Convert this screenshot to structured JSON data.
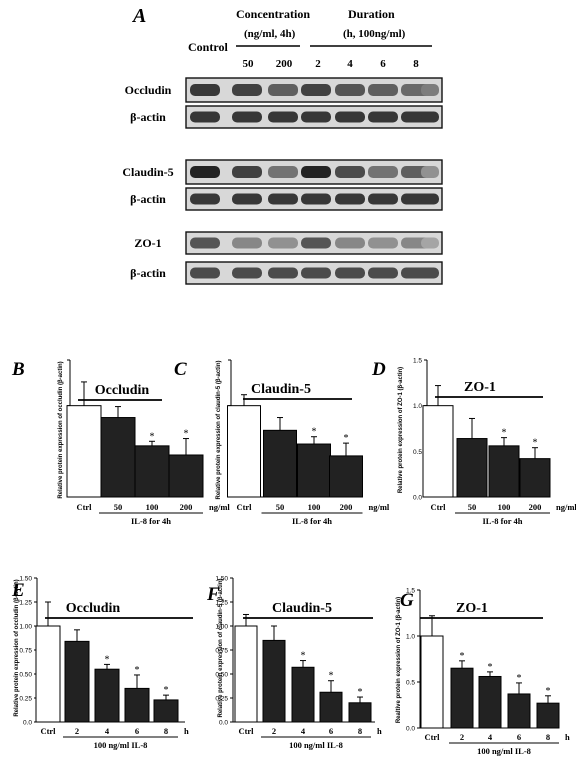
{
  "panel_a": {
    "letter": "A",
    "control_label": "Control",
    "concentration_header": [
      "Concentration",
      "(ng/ml, 4h)"
    ],
    "duration_header": [
      "Duration",
      "(h, 100ng/ml)"
    ],
    "lane_labels": [
      "50",
      "200",
      "2",
      "4",
      "6",
      "8"
    ],
    "blots": [
      {
        "label": "Occludin",
        "intensities": [
          0.85,
          0.8,
          0.65,
          0.8,
          0.7,
          0.65,
          0.6,
          0.5
        ]
      },
      {
        "label": "β-actin",
        "intensities": [
          0.85,
          0.85,
          0.85,
          0.85,
          0.85,
          0.85,
          0.85,
          0.85
        ]
      },
      {
        "label": "Claudin-5",
        "intensities": [
          0.95,
          0.8,
          0.55,
          0.95,
          0.75,
          0.55,
          0.65,
          0.4
        ]
      },
      {
        "label": "β-actin",
        "intensities": [
          0.85,
          0.85,
          0.85,
          0.85,
          0.85,
          0.85,
          0.85,
          0.85
        ]
      },
      {
        "label": "ZO-1",
        "intensities": [
          0.7,
          0.45,
          0.4,
          0.7,
          0.45,
          0.4,
          0.45,
          0.3
        ]
      },
      {
        "label": "β-actin",
        "intensities": [
          0.75,
          0.75,
          0.75,
          0.75,
          0.75,
          0.75,
          0.75,
          0.75
        ]
      }
    ]
  },
  "chart_data": [
    {
      "panel": "B",
      "type": "bar",
      "title": "Occludin",
      "ylabel": "Relative protein expression of occludin (β-actin)",
      "categories": [
        "Ctrl",
        "50",
        "100",
        "200"
      ],
      "values": [
        1.0,
        0.87,
        0.56,
        0.46
      ],
      "errors": [
        0.26,
        0.12,
        0.05,
        0.18
      ],
      "significant": [
        false,
        false,
        true,
        true
      ],
      "unit": "ng/ml",
      "group_label": "IL-8 for 4h",
      "ylim": [
        0,
        1.5
      ],
      "yticks": []
    },
    {
      "panel": "C",
      "type": "bar",
      "title": "Claudin-5",
      "ylabel": "Relative protein expression of claudin-5 (β-actin)",
      "categories": [
        "Ctrl",
        "50",
        "100",
        "200"
      ],
      "values": [
        1.0,
        0.73,
        0.58,
        0.45
      ],
      "errors": [
        0.12,
        0.14,
        0.08,
        0.14
      ],
      "significant": [
        false,
        false,
        true,
        true
      ],
      "unit": "ng/ml",
      "group_label": "IL-8 for 4h",
      "ylim": [
        0,
        1.5
      ],
      "yticks": []
    },
    {
      "panel": "D",
      "type": "bar",
      "title": "ZO-1",
      "ylabel": "Relative protein expression of ZO-1 (β-actin)",
      "categories": [
        "Ctrl",
        "50",
        "100",
        "200"
      ],
      "values": [
        1.0,
        0.64,
        0.56,
        0.42
      ],
      "errors": [
        0.22,
        0.22,
        0.09,
        0.12
      ],
      "significant": [
        false,
        false,
        true,
        true
      ],
      "unit": "ng/ml",
      "group_label": "IL-8 for 4h",
      "ylim": [
        0,
        1.5
      ],
      "yticks": [
        "0.0",
        "0.5",
        "1.0",
        "1.5"
      ]
    },
    {
      "panel": "E",
      "type": "bar",
      "title": "Occludin",
      "ylabel": "Relative protein expression of occludin (β-actin)",
      "categories": [
        "Ctrl",
        "2",
        "4",
        "6",
        "8"
      ],
      "values": [
        1.0,
        0.84,
        0.55,
        0.35,
        0.23
      ],
      "errors": [
        0.25,
        0.12,
        0.05,
        0.14,
        0.05
      ],
      "significant": [
        false,
        false,
        true,
        true,
        true
      ],
      "unit": "h",
      "group_label": "100 ng/ml IL-8",
      "ylim": [
        0,
        1.5
      ],
      "yticks": [
        "0.0",
        "0.25",
        "0.50",
        "0.75",
        "1.00",
        "1.25",
        "1.50"
      ]
    },
    {
      "panel": "F",
      "type": "bar",
      "title": "Claudin-5",
      "ylabel": "Relative protein expression of claudin-5 (β-actin)",
      "categories": [
        "Ctrl",
        "2",
        "4",
        "6",
        "8"
      ],
      "values": [
        1.0,
        0.85,
        0.57,
        0.31,
        0.2
      ],
      "errors": [
        0.12,
        0.15,
        0.07,
        0.12,
        0.06
      ],
      "significant": [
        false,
        false,
        true,
        true,
        true
      ],
      "unit": "h",
      "group_label": "100 ng/ml IL-8",
      "ylim": [
        0,
        1.5
      ],
      "yticks": [
        "0.0",
        "0.25",
        "0.50",
        "0.75",
        "1.00",
        "1.25",
        "1.50"
      ]
    },
    {
      "panel": "G",
      "type": "bar",
      "title": "ZO-1",
      "ylabel": "Realtive protein expression of ZO-1 (β-actin)",
      "categories": [
        "Ctrl",
        "2",
        "4",
        "6",
        "8"
      ],
      "values": [
        1.0,
        0.65,
        0.56,
        0.37,
        0.27
      ],
      "errors": [
        0.22,
        0.08,
        0.05,
        0.12,
        0.08
      ],
      "significant": [
        false,
        true,
        true,
        true,
        true
      ],
      "unit": "h",
      "group_label": "100 ng/ml IL-8",
      "ylim": [
        0,
        1.5
      ],
      "yticks": [
        "0.0",
        "0.5",
        "1.0",
        "1.5"
      ]
    }
  ]
}
